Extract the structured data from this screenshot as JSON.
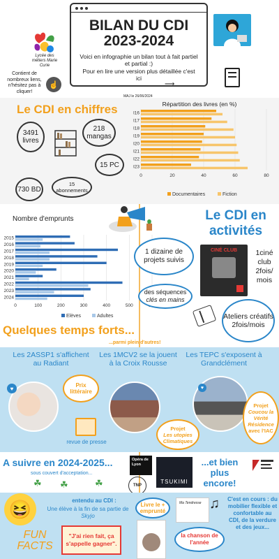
{
  "header": {
    "title_line1": "BILAN DU CDI",
    "title_line2": "2023-2024",
    "intro": "Voici en infographie un bilan tout à fait partiel et partial :)",
    "link_text": "Pour en lire une version plus détaillée c'est ici",
    "updated": "MAJ le 26/06/2024",
    "school_name": "Lycée des métiers Marie Curie",
    "links_note": "Contient de nombreux liens, n'hésitez pas à cliquer!"
  },
  "chiffres": {
    "title": "Le CDI en chiffres",
    "livres": "3491 livres",
    "mangas": "218 mangas",
    "pc": "15 PC",
    "bd": "730 BD",
    "abonnements": "15 abonnements"
  },
  "chart_data": [
    {
      "type": "bar",
      "title": "Répartition des livres (en %)",
      "orientation": "horizontal",
      "categories": [
        "I16",
        "I17",
        "I18",
        "I19",
        "I20",
        "I21",
        "I22",
        "I23"
      ],
      "series": [
        {
          "name": "Documentaires",
          "color": "#f2a01c",
          "values": [
            48,
            45,
            41,
            40,
            39,
            38,
            37,
            32
          ]
        },
        {
          "name": "Fiction",
          "color": "#f7c56b",
          "values": [
            52,
            55,
            59,
            60,
            61,
            62,
            63,
            68
          ]
        }
      ],
      "xticks": [
        "0",
        "20",
        "40",
        "60",
        "80"
      ],
      "xlim": [
        0,
        80
      ]
    },
    {
      "type": "bar",
      "title": "Nombre d'emprunts",
      "orientation": "horizontal",
      "categories": [
        "2015",
        "2016",
        "2017",
        "2018",
        "2019",
        "2020",
        "2021",
        "2022",
        "2023",
        "2024"
      ],
      "series": [
        {
          "name": "Elèves",
          "color": "#2f6db5",
          "values": [
            240,
            260,
            450,
            360,
            400,
            180,
            120,
            470,
            330,
            300
          ]
        },
        {
          "name": "Adultes",
          "color": "#a8c8e8",
          "values": [
            120,
            110,
            150,
            150,
            120,
            90,
            60,
            320,
            170,
            140
          ]
        }
      ],
      "xticks": [
        "0",
        "100",
        "200",
        "300",
        "400",
        "500",
        "600"
      ],
      "xlim": [
        0,
        600
      ]
    }
  ],
  "activites": {
    "title_line1": "Le CDI en",
    "title_line2": "activités",
    "projets": "1 dizaine de projets suivis",
    "cine_club": "1ciné club 2fois/ mois",
    "sequences": "des séquences",
    "sequences_em": "clés en mains",
    "ateliers": "Ateliers créatifs 2fois/mois"
  },
  "temps_forts": {
    "title": "Quelques temps forts...",
    "subtitle": "...parmi plein d'autres!",
    "assp1": "Les 2ASSP1 s'affichent au Radiant",
    "prix": "Prix littéraire",
    "revue": "revue de presse",
    "mcv2": "Les 1MCV2 se la jouent à la Croix Rousse",
    "utopies_projet": "Projet",
    "utopies": "Les utopies Climatiques",
    "tepc": "Les TEPC s'exposent à Grandclément",
    "verite_projet": "Projet",
    "verite": "Coucou la Vérité Résidence",
    "verite_tail": "avec l'IAC"
  },
  "suivre": {
    "title": "A suivre en 2024-2025...",
    "sub": "sous couvert d'acceptation...",
    "plus": "...et bien plus encore!",
    "opera": "Opéra de Lyon",
    "tnp": "TNP",
    "tsukimi": "TSUKIMI"
  },
  "fun": {
    "title_line1": "FUN",
    "title_line2": "FACTS",
    "entendu": "entendu au CDI :",
    "eleve": "Une élève à la fin de sa partie de",
    "skyjo": "Skyjo",
    "quote": "\"J'ai rien fait, ça s'appelle gagner\".",
    "livre": "Livre le + emprunté",
    "chanson": "la chanson de l'année",
    "en_cours": "C'est en cours : du mobilier flexible et confortable au CDI, de la verdure et des jeux..."
  }
}
